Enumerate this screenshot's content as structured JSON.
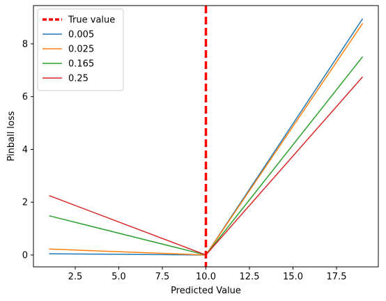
{
  "chart_data": {
    "type": "line",
    "title": "",
    "xlabel": "Predicted Value",
    "ylabel": "Pinball loss",
    "xlim": [
      0.1,
      19.9
    ],
    "ylim": [
      -0.45,
      9.45
    ],
    "xticks": [
      2.5,
      5.0,
      7.5,
      10.0,
      12.5,
      15.0,
      17.5
    ],
    "xtick_labels": [
      "2.5",
      "5.0",
      "7.5",
      "10.0",
      "12.5",
      "15.0",
      "17.5"
    ],
    "yticks": [
      0,
      2,
      4,
      6,
      8
    ],
    "ytick_labels": [
      "0",
      "2",
      "4",
      "6",
      "8"
    ],
    "grid": false,
    "legend_position": "upper-left",
    "true_value": {
      "name": "True value",
      "x": 10,
      "color": "#ff0000",
      "style": "dashed"
    },
    "series": [
      {
        "name": "0.005",
        "color": "#1f77b4",
        "x": [
          1,
          10,
          19
        ],
        "y": [
          0.045,
          0,
          8.955
        ]
      },
      {
        "name": "0.025",
        "color": "#ff7f0e",
        "x": [
          1,
          10,
          19
        ],
        "y": [
          0.225,
          0,
          8.775
        ]
      },
      {
        "name": "0.165",
        "color": "#2ca02c",
        "x": [
          1,
          10,
          19
        ],
        "y": [
          1.485,
          0,
          7.515
        ]
      },
      {
        "name": "0.25",
        "color": "#d62728",
        "x": [
          1,
          10,
          19
        ],
        "y": [
          2.25,
          0,
          6.75
        ]
      }
    ]
  }
}
